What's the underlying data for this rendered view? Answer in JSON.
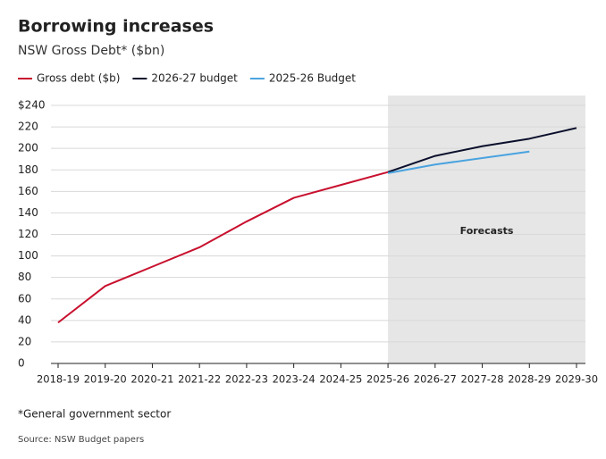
{
  "chart_data": {
    "type": "line",
    "title": "Borrowing increases",
    "subtitle": "NSW Gross Debt* ($bn)",
    "categories": [
      "2018-19",
      "2019-20",
      "2020-21",
      "2021-22",
      "2022-23",
      "2023-24",
      "2024-25",
      "2025-26",
      "2026-27",
      "2027-28",
      "2028-29",
      "2029-30"
    ],
    "series": [
      {
        "name": "Gross debt ($b)",
        "color": "#c8102e",
        "values": [
          38,
          72,
          90,
          108,
          132,
          154,
          166,
          178,
          null,
          null,
          null,
          null
        ]
      },
      {
        "name": "2026-27 budget",
        "color": "#0a0f2c",
        "values": [
          null,
          null,
          null,
          null,
          null,
          null,
          null,
          178,
          193,
          202,
          209,
          219
        ]
      },
      {
        "name": "2025-26 Budget",
        "color": "#4aa3df",
        "values": [
          null,
          null,
          null,
          null,
          null,
          null,
          null,
          177,
          185,
          191,
          197,
          null
        ]
      }
    ],
    "ylim": [
      0,
      240
    ],
    "yticks": [
      0,
      20,
      40,
      60,
      80,
      100,
      120,
      140,
      160,
      180,
      200,
      220,
      {
        "value": 240,
        "label": "$240"
      }
    ],
    "grid": true,
    "annotation": "Forecasts",
    "footnote": "*General government sector",
    "source": "Source: NSW Budget papers"
  }
}
